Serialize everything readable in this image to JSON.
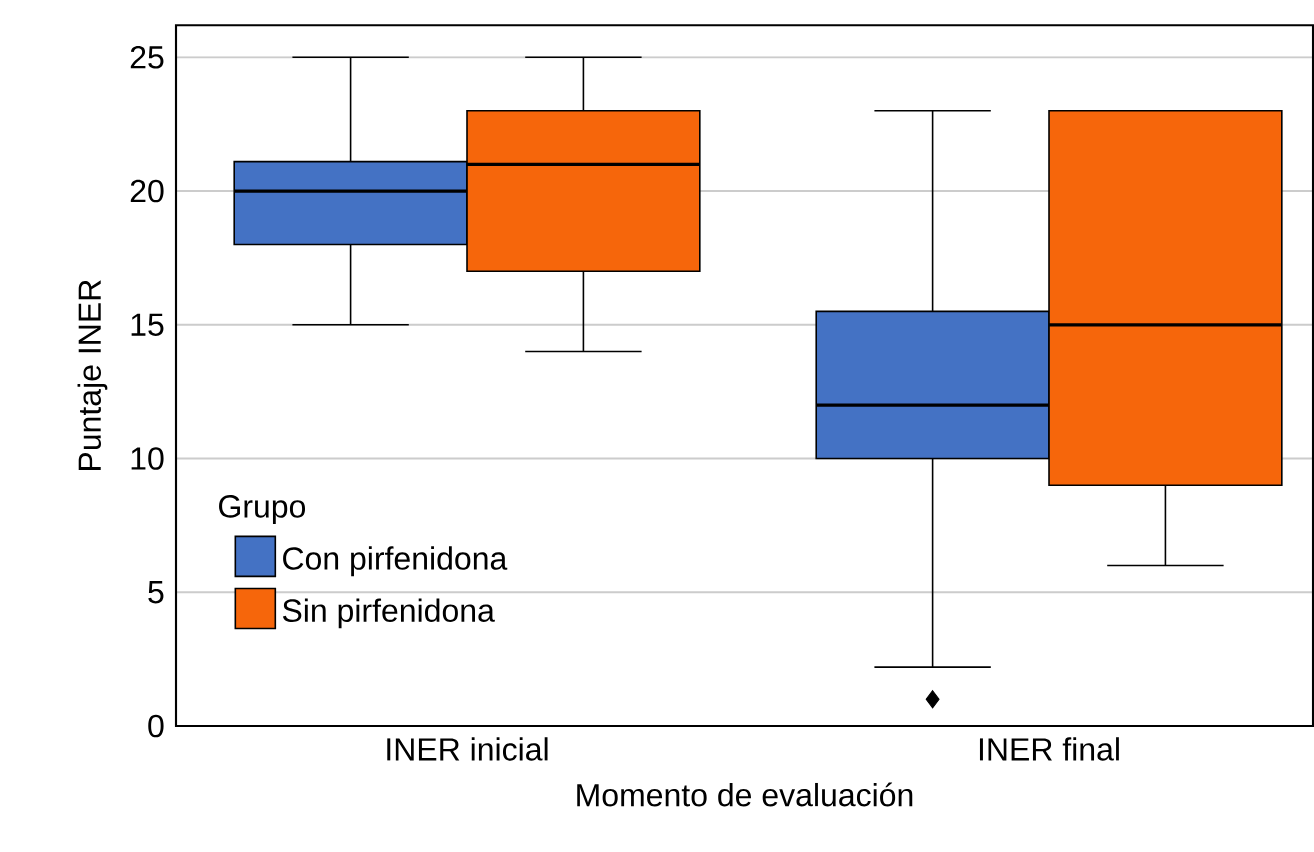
{
  "chart_data": {
    "type": "box",
    "xlabel": "Momento de evaluación",
    "ylabel": "Puntaje INER",
    "legend_title": "Grupo",
    "categories": [
      "INER inicial",
      "INER final"
    ],
    "series": [
      {
        "name": "Con pirfenidona",
        "color": "#4472c4",
        "boxes": [
          {
            "low": 15,
            "q1": 18,
            "median": 20,
            "q3": 21.1,
            "high": 25
          },
          {
            "low": 2.2,
            "q1": 10,
            "median": 12,
            "q3": 15.5,
            "high": 23,
            "outliers": [
              1
            ]
          }
        ]
      },
      {
        "name": "Sin pirfenidona",
        "color": "#f6660b",
        "boxes": [
          {
            "low": 14,
            "q1": 17,
            "median": 21,
            "q3": 23,
            "high": 25
          },
          {
            "low": 6,
            "q1": 9,
            "median": 15,
            "q3": 23,
            "high": 23
          }
        ]
      }
    ],
    "ylim": [
      0,
      26.2
    ],
    "yticks": [
      0,
      5,
      10,
      15,
      20,
      25
    ],
    "grid": "y",
    "legend": "bottom left"
  }
}
